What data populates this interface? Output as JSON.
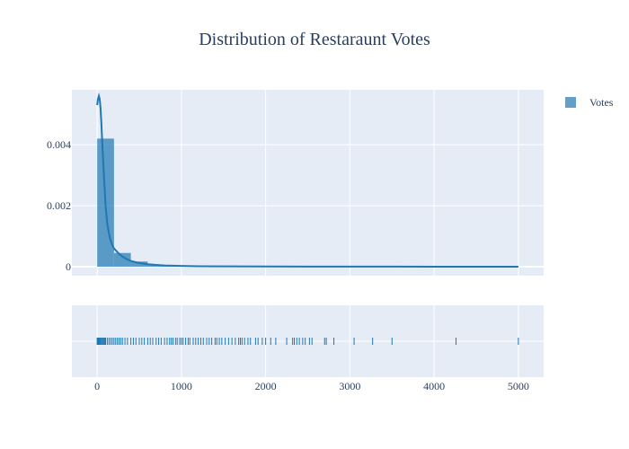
{
  "chart_data": {
    "type": "histogram",
    "title": "Distribution of Restaraunt Votes",
    "xlabel": "",
    "ylabel": "",
    "xlim": [
      -300,
      5300
    ],
    "ylim": [
      0,
      0.0058
    ],
    "x_ticks": [
      0,
      1000,
      2000,
      3000,
      4000,
      5000
    ],
    "x_tick_labels": [
      "0",
      "1000",
      "2000",
      "3000",
      "4000",
      "5000"
    ],
    "y_ticks": [
      0,
      0.002,
      0.004
    ],
    "y_tick_labels": [
      "0",
      "0.002",
      "0.004"
    ],
    "grid": true,
    "legend_position": "top-right",
    "colors": {
      "series": "#1f77b4",
      "plot_bg": "#e5ecf6",
      "grid": "#ffffff",
      "text": "#2a3f5f"
    },
    "series": [
      {
        "name": "Votes",
        "bins": [
          {
            "start": 0,
            "end": 200,
            "density": 0.0042
          },
          {
            "start": 200,
            "end": 400,
            "density": 0.00045
          },
          {
            "start": 400,
            "end": 600,
            "density": 0.00017
          },
          {
            "start": 600,
            "end": 800,
            "density": 7e-05
          },
          {
            "start": 800,
            "end": 1000,
            "density": 3e-05
          },
          {
            "start": 1000,
            "end": 1200,
            "density": 2e-05
          },
          {
            "start": 1200,
            "end": 1400,
            "density": 1.2e-05
          },
          {
            "start": 1400,
            "end": 1600,
            "density": 8e-06
          },
          {
            "start": 1600,
            "end": 1800,
            "density": 6e-06
          },
          {
            "start": 1800,
            "end": 2000,
            "density": 4e-06
          },
          {
            "start": 2000,
            "end": 2200,
            "density": 3e-06
          },
          {
            "start": 2200,
            "end": 2400,
            "density": 3e-06
          },
          {
            "start": 2400,
            "end": 2600,
            "density": 2e-06
          },
          {
            "start": 2600,
            "end": 2800,
            "density": 1.5e-06
          },
          {
            "start": 2800,
            "end": 3000,
            "density": 1e-06
          },
          {
            "start": 3000,
            "end": 3200,
            "density": 1e-06
          },
          {
            "start": 3200,
            "end": 3400,
            "density": 8e-07
          },
          {
            "start": 3400,
            "end": 3600,
            "density": 8e-07
          },
          {
            "start": 3600,
            "end": 3800,
            "density": 5e-07
          },
          {
            "start": 3800,
            "end": 4000,
            "density": 5e-07
          },
          {
            "start": 4000,
            "end": 4200,
            "density": 5e-07
          },
          {
            "start": 4200,
            "end": 4400,
            "density": 6e-07
          },
          {
            "start": 4400,
            "end": 4600,
            "density": 4e-07
          },
          {
            "start": 4600,
            "end": 4800,
            "density": 4e-07
          },
          {
            "start": 4800,
            "end": 5000,
            "density": 5e-07
          }
        ],
        "kde": {
          "x": [
            0,
            10,
            20,
            30,
            40,
            50,
            60,
            80,
            100,
            120,
            150,
            180,
            200,
            250,
            300,
            350,
            400,
            500,
            600,
            700,
            800,
            1000,
            1200,
            1500,
            2000,
            2500,
            3000,
            3500,
            4000,
            4500,
            5000
          ],
          "y": [
            0.0053,
            0.0055,
            0.0056,
            0.0055,
            0.0052,
            0.0047,
            0.0041,
            0.003,
            0.002,
            0.0014,
            0.00095,
            0.0007,
            0.0006,
            0.00045,
            0.00033,
            0.00025,
            0.00019,
            0.00012,
            8e-05,
            6e-05,
            4e-05,
            2.5e-05,
            1.5e-05,
            1e-05,
            6e-06,
            4e-06,
            3e-06,
            2e-06,
            1.5e-06,
            1e-06,
            1e-06
          ]
        },
        "rug": [
          0,
          5,
          10,
          15,
          20,
          25,
          30,
          40,
          50,
          60,
          70,
          80,
          90,
          100,
          120,
          140,
          160,
          180,
          200,
          220,
          240,
          260,
          280,
          300,
          330,
          360,
          400,
          430,
          460,
          500,
          530,
          560,
          600,
          630,
          660,
          700,
          730,
          760,
          800,
          830,
          860,
          880,
          900,
          930,
          950,
          980,
          1000,
          1020,
          1050,
          1080,
          1100,
          1140,
          1170,
          1200,
          1230,
          1260,
          1300,
          1330,
          1360,
          1400,
          1420,
          1450,
          1480,
          1520,
          1560,
          1600,
          1640,
          1680,
          1700,
          1720,
          1750,
          1790,
          1820,
          1880,
          1910,
          1960,
          2000,
          2060,
          2120,
          2250,
          2320,
          2340,
          2370,
          2400,
          2440,
          2470,
          2520,
          2550,
          2700,
          2720,
          2810,
          3050,
          3270,
          3500,
          4260,
          5000
        ]
      }
    ]
  }
}
